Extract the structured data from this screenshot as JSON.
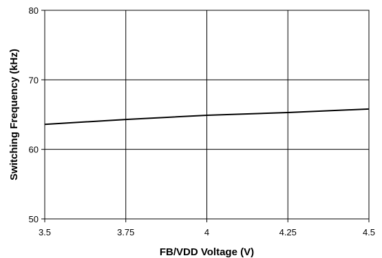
{
  "chart_data": {
    "type": "line",
    "title": "",
    "xlabel": "FB/VDD Voltage (V)",
    "ylabel": "Switching Frequency (kHz)",
    "xlim": [
      3.5,
      4.5
    ],
    "ylim": [
      50,
      80
    ],
    "x_ticks": [
      "3.5",
      "3.75",
      "4",
      "4.25",
      "4.5"
    ],
    "y_ticks": [
      "50",
      "60",
      "70",
      "80"
    ],
    "grid": true,
    "legend": "none",
    "series": [
      {
        "x": [
          3.5,
          3.75,
          4.0,
          4.25,
          4.5
        ],
        "y": [
          63.6,
          64.3,
          64.9,
          65.3,
          65.8
        ],
        "color": "#000000"
      }
    ]
  }
}
